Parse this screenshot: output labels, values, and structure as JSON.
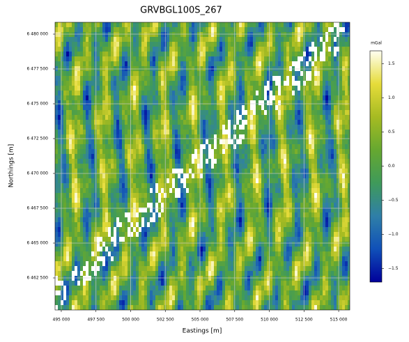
{
  "chart_data": {
    "type": "heatmap",
    "title": "GRVBGL100S_267",
    "x_label": "Eastings [m]",
    "y_label": "Northings [m]",
    "xlim": [
      494550,
      515800
    ],
    "ylim": [
      6460200,
      6480850
    ],
    "xticks": [
      {
        "value": 495000,
        "label": "495 000"
      },
      {
        "value": 497500,
        "label": "497 500"
      },
      {
        "value": 500000,
        "label": "500 000"
      },
      {
        "value": 502500,
        "label": "502 500"
      },
      {
        "value": 505000,
        "label": "505 000"
      },
      {
        "value": 507500,
        "label": "507 500"
      },
      {
        "value": 510000,
        "label": "510 000"
      },
      {
        "value": 512500,
        "label": "512 500"
      },
      {
        "value": 515000,
        "label": "515 000"
      }
    ],
    "yticks": [
      {
        "value": 6462500,
        "label": "6 462 500"
      },
      {
        "value": 6465000,
        "label": "6 465 000"
      },
      {
        "value": 6467500,
        "label": "6 467 500"
      },
      {
        "value": 6470000,
        "label": "6 470 000"
      },
      {
        "value": 6472500,
        "label": "6 472 500"
      },
      {
        "value": 6475000,
        "label": "6 475 000"
      },
      {
        "value": 6477500,
        "label": "6 477 500"
      },
      {
        "value": 6480000,
        "label": "6 480 000"
      }
    ],
    "grid": true,
    "colorbar": {
      "label": "mGal",
      "lim": [
        -1.7,
        1.69
      ],
      "ticks": [
        {
          "value": -1.5,
          "label": "−1.5"
        },
        {
          "value": -1.0,
          "label": "−1.0"
        },
        {
          "value": -0.5,
          "label": "−0.5"
        },
        {
          "value": 0.0,
          "label": "0.0"
        },
        {
          "value": 0.5,
          "label": "0.5"
        },
        {
          "value": 1.0,
          "label": "1.0"
        },
        {
          "value": 1.5,
          "label": "1.5"
        }
      ],
      "colormap": [
        "#00009a",
        "#1050b8",
        "#2f7fa8",
        "#3f9a5a",
        "#66a830",
        "#a6bb22",
        "#e6dc3a",
        "#fffff2"
      ]
    }
  }
}
